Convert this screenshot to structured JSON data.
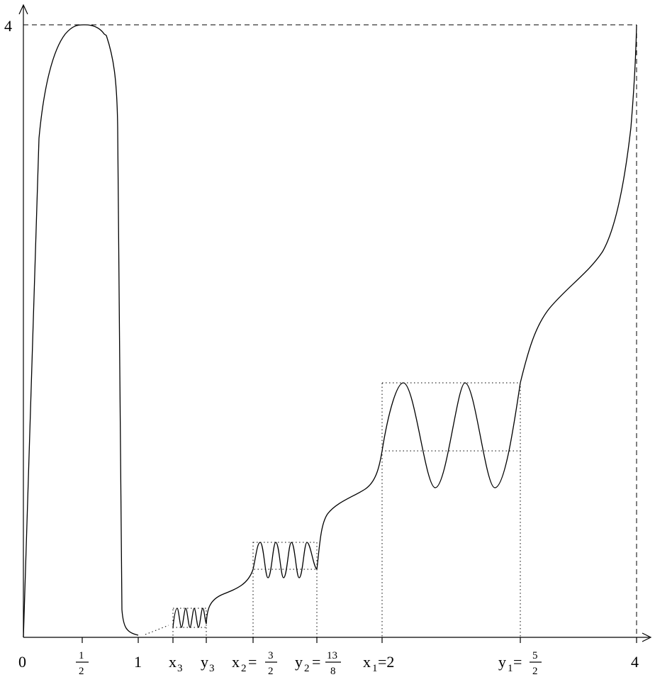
{
  "y_axis": {
    "top_label": "4"
  },
  "x_axis": {
    "labels": {
      "zero": "0",
      "half_num": "1",
      "half_den": "2",
      "one": "1",
      "x3_main": "x",
      "x3_sub": "3",
      "y3_main": "y",
      "y3_sub": "3",
      "x2_main": "x",
      "x2_sub": "2",
      "x2_eq": "=",
      "x2_num": "3",
      "x2_den": "2",
      "y2_main": "y",
      "y2_sub": "2",
      "y2_eq": "=",
      "y2_num": "13",
      "y2_den": "8",
      "x1_main": "x",
      "x1_sub": "1",
      "x1_val": "=2",
      "y1_main": "y",
      "y1_sub": "1",
      "y1_eq": "=",
      "y1_num": "5",
      "y1_den": "2",
      "four": "4"
    }
  },
  "chart_data": {
    "type": "function-plot",
    "x_range": [
      0,
      4
    ],
    "y_range": [
      0,
      4
    ],
    "marked_points_x": [
      0,
      0.5,
      1,
      1.5,
      1.625,
      2,
      2.5,
      4
    ],
    "notes_visible": [
      "4",
      "0",
      "1/2",
      "1",
      "x3",
      "y3",
      "x2=3/2",
      "y2=13/8",
      "x1=2",
      "y1=5/2",
      "4"
    ]
  }
}
